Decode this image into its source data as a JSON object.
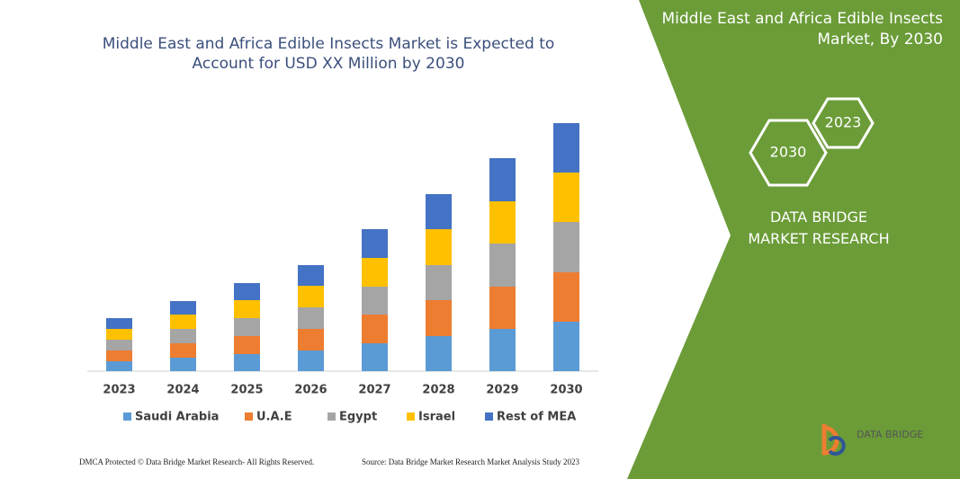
{
  "chart_data": {
    "type": "stacked_bar",
    "title": "Middle East and Africa Edible Insects Market is Expected to Account for USD XX Million by 2030",
    "categories": [
      "2023",
      "2024",
      "2025",
      "2026",
      "2027",
      "2028",
      "2029",
      "2030"
    ],
    "series": [
      {
        "name": "Saudi Arabia",
        "color": "#5b9bd5",
        "values": [
          11,
          15,
          19,
          23,
          31,
          39,
          47,
          55
        ]
      },
      {
        "name": "U.A.E",
        "color": "#ed7d31",
        "values": [
          12,
          16,
          20,
          24,
          32,
          40,
          47,
          55
        ]
      },
      {
        "name": "Egypt",
        "color": "#a5a5a5",
        "values": [
          12,
          16,
          20,
          24,
          31,
          39,
          48,
          56
        ]
      },
      {
        "name": "Israel",
        "color": "#ffc000",
        "values": [
          12,
          16,
          20,
          24,
          32,
          40,
          47,
          55
        ]
      },
      {
        "name": "Rest of MEA",
        "color": "#4472c4",
        "values": [
          12,
          15,
          19,
          23,
          32,
          39,
          48,
          55
        ]
      }
    ]
  },
  "side_panel": {
    "title": "Middle East and Africa Edible Insects Market, By 2030",
    "hexagons": [
      "2030",
      "2023"
    ],
    "brand": "DATA BRIDGE MARKET RESEARCH"
  },
  "footer": {
    "left": "DMCA Protected © Data Bridge Market Research- All Rights Reserved.",
    "right": "Source: Data Bridge Market Research Market Analysis Study 2023"
  },
  "logo": {
    "text": "DATA BRIDGE"
  }
}
